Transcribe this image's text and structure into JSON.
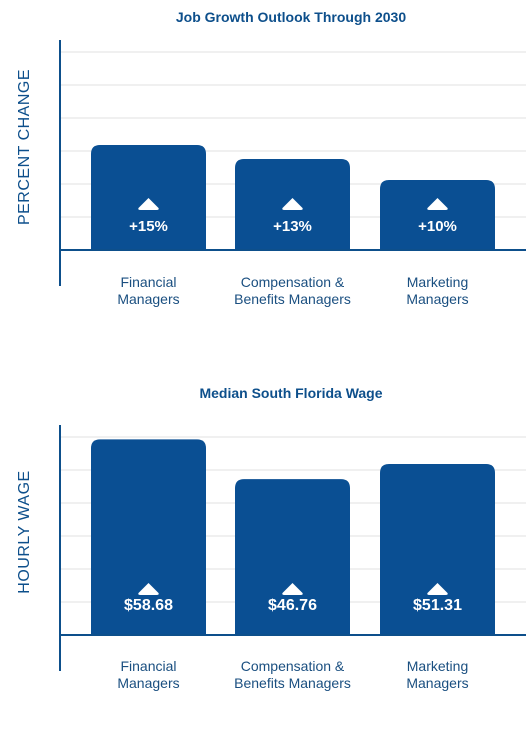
{
  "colors": {
    "bar": "#0a4f93",
    "axis": "#0d4f8b",
    "grid": "#e2e2e2",
    "text": "#1a4f80",
    "icon": "#ffffff"
  },
  "icons": {
    "bar_marker": "triangle-up-icon"
  },
  "chart_data": [
    {
      "type": "bar",
      "title": "Job Growth Outlook Through 2030",
      "ylabel": "PERCENT CHANGE",
      "xlabel": "",
      "ylim": [
        0,
        30
      ],
      "grid": true,
      "categories": [
        [
          "Financial",
          "Managers"
        ],
        [
          "Compensation &",
          "Benefits Managers"
        ],
        [
          "Marketing",
          "Managers"
        ]
      ],
      "values": [
        15,
        13,
        10
      ],
      "labels": [
        "+15%",
        "+13%",
        "+10%"
      ]
    },
    {
      "type": "bar",
      "title": "Median South Florida Wage",
      "ylabel": "HOURLY WAGE",
      "xlabel": "",
      "ylim": [
        0,
        63
      ],
      "grid": true,
      "categories": [
        [
          "Financial",
          "Managers"
        ],
        [
          "Compensation &",
          "Benefits Managers"
        ],
        [
          "Marketing",
          "Managers"
        ]
      ],
      "values": [
        58.68,
        46.76,
        51.31
      ],
      "labels": [
        "$58.68",
        "$46.76",
        "$51.31"
      ]
    }
  ]
}
